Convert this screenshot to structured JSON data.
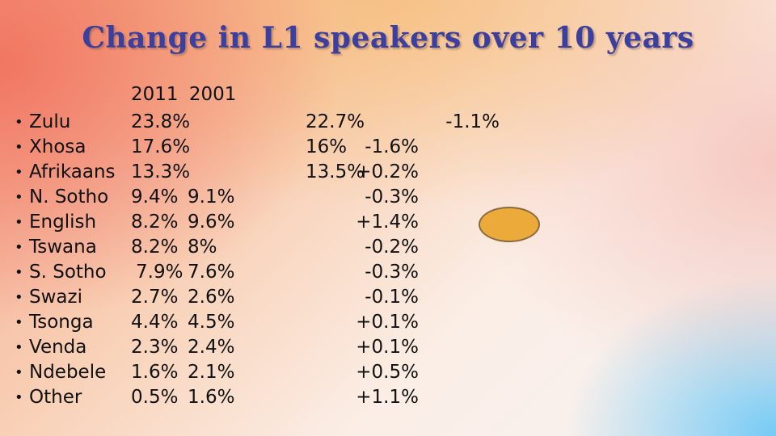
{
  "title": "Change in L1 speakers over 10 years",
  "columns": {
    "year_2011": "2011",
    "year_2001": "2001"
  },
  "rows": [
    {
      "language": "Zulu",
      "v2011": "23.8%",
      "v2001": ""
    },
    {
      "language": "Xhosa",
      "v2011": "17.6%",
      "v2001": ""
    },
    {
      "language": "Afrikaans",
      "v2011": "13.3%",
      "v2001": ""
    },
    {
      "language": "N. Sotho",
      "v2011": "9.4%",
      "v2001": "9.1%"
    },
    {
      "language": "English",
      "v2011": "8.2%",
      "v2001": "9.6%"
    },
    {
      "language": "Tswana",
      "v2011": "8.2%",
      "v2001": "8%"
    },
    {
      "language": "S. Sotho",
      "v2011": "7.9%",
      "v2001": "7.6%"
    },
    {
      "language": "Swazi",
      "v2011": "2.7%",
      "v2001": "2.6%"
    },
    {
      "language": "Tsonga",
      "v2011": "4.4%",
      "v2001": "4.5%"
    },
    {
      "language": "Venda",
      "v2011": "2.3%",
      "v2001": "2.4%"
    },
    {
      "language": "Ndebele",
      "v2011": "1.6%",
      "v2001": "2.1%"
    },
    {
      "language": "Other",
      "v2011": "0.5%",
      "v2001": "1.6%"
    }
  ],
  "right_column": [
    {
      "v2001": "22.7%",
      "change": "-1.1%"
    },
    {
      "v2001": "16%",
      "change": "-1.6%"
    },
    {
      "v2001": "13.5%",
      "change": "+0.2%"
    },
    {
      "v2001": "",
      "change": "-0.3%"
    },
    {
      "v2001": "",
      "change": "+1.4%"
    },
    {
      "v2001": "",
      "change": "-0.2%"
    },
    {
      "v2001": "",
      "change": "-0.3%"
    },
    {
      "v2001": "",
      "change": "-0.1%"
    },
    {
      "v2001": "",
      "change": "+0.1%"
    },
    {
      "v2001": "",
      "change": "+0.1%"
    },
    {
      "v2001": "",
      "change": "+0.5%"
    },
    {
      "v2001": "",
      "change": "+1.1%"
    }
  ],
  "highlight_color": "#ecaa3a"
}
